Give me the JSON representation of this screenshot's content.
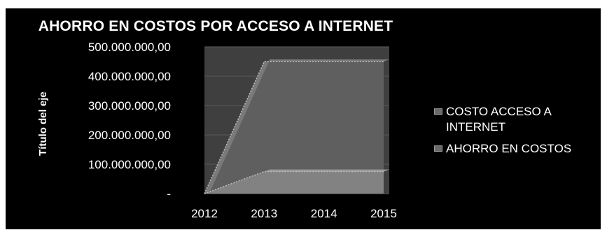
{
  "chart_data": {
    "type": "area",
    "title": "AHORRO EN COSTOS POR ACCESO A INTERNET",
    "xlabel": "",
    "ylabel": "Título del eje",
    "categories": [
      "2012",
      "2013",
      "2014",
      "2015"
    ],
    "y_ticks": [
      "500.000.000,00",
      "400.000.000,00",
      "300.000.000,00",
      "200.000.000,00",
      "100.000.000,00",
      "-"
    ],
    "ylim": [
      0,
      500000000
    ],
    "grid": true,
    "legend_position": "right",
    "series": [
      {
        "name": "COSTO ACCESO A INTERNET",
        "values": [
          0,
          450000000,
          450000000,
          450000000
        ]
      },
      {
        "name": "AHORRO EN COSTOS",
        "values": [
          0,
          75000000,
          75000000,
          75000000
        ]
      }
    ],
    "colors": {
      "background": "#000000",
      "text": "#ffffff",
      "plot_area": "#3f3f3f",
      "back_series": "#5f5f5f",
      "front_series": "#828282"
    }
  },
  "legend": {
    "item1_line1": "COSTO ACCESO  A",
    "item1_line2": "INTERNET",
    "item2": "AHORRO EN COSTOS"
  }
}
